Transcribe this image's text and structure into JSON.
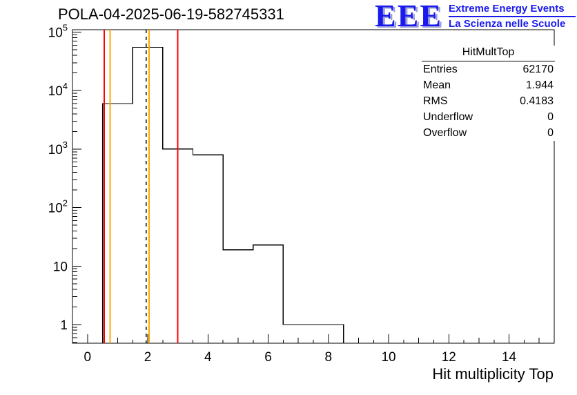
{
  "logo": {
    "eee": "EEE",
    "line1": "Extreme Energy Events",
    "line2": "La Scienza nelle Scuole",
    "color": "#1a1aee"
  },
  "stats": {
    "title": "HitMultTop",
    "rows": [
      {
        "label": "Entries",
        "value": "62170"
      },
      {
        "label": "Mean",
        "value": "1.944"
      },
      {
        "label": "RMS",
        "value": "0.4183"
      },
      {
        "label": "Underflow",
        "value": "0"
      },
      {
        "label": "Overflow",
        "value": "0"
      }
    ]
  },
  "chart_data": {
    "type": "bar",
    "subtype": "step-histogram",
    "title": "POLA-04-2025-06-19-582745331",
    "xlabel": "Hit multiplicity Top",
    "ylabel": "",
    "y_scale": "log",
    "x_range": [
      -0.5,
      15.5
    ],
    "y_range": [
      0.48,
      110000
    ],
    "bin_edges": [
      -0.5,
      0.5,
      1.5,
      2.5,
      3.5,
      4.5,
      5.5,
      6.5,
      7.5,
      8.5,
      9.5,
      10.5,
      11.5,
      12.5,
      13.5,
      14.5,
      15.5
    ],
    "counts": [
      0,
      6000,
      55000,
      1000,
      800,
      19,
      23,
      1,
      1,
      0,
      0,
      0,
      0,
      0,
      0,
      0
    ],
    "x_ticks_major": [
      0,
      2,
      4,
      6,
      8,
      10,
      12,
      14
    ],
    "x_tick_labels": [
      "0",
      "2",
      "4",
      "6",
      "8",
      "10",
      "12",
      "14"
    ],
    "y_ticks": [
      {
        "base": "1",
        "exp": ""
      },
      {
        "base": "10",
        "exp": ""
      },
      {
        "base": "10",
        "exp": "2"
      },
      {
        "base": "10",
        "exp": "3"
      },
      {
        "base": "10",
        "exp": "4"
      },
      {
        "base": "10",
        "exp": "5"
      }
    ],
    "line_color": "#000000",
    "grid": false,
    "legend": false,
    "marker_lines": [
      {
        "name": "marker-line-red-low",
        "x": 0.55,
        "color": "#ff0000",
        "width": 2,
        "dash": ""
      },
      {
        "name": "marker-line-orange-low",
        "x": 0.75,
        "color": "#ffaa00",
        "width": 2,
        "dash": ""
      },
      {
        "name": "marker-line-mean-dashed",
        "x": 1.944,
        "color": "#000000",
        "width": 1.5,
        "dash": "5,5"
      },
      {
        "name": "marker-line-orange-high",
        "x": 2.05,
        "color": "#ffaa00",
        "width": 2,
        "dash": ""
      },
      {
        "name": "marker-line-red-high",
        "x": 3.0,
        "color": "#ff0000",
        "width": 2,
        "dash": ""
      }
    ]
  }
}
